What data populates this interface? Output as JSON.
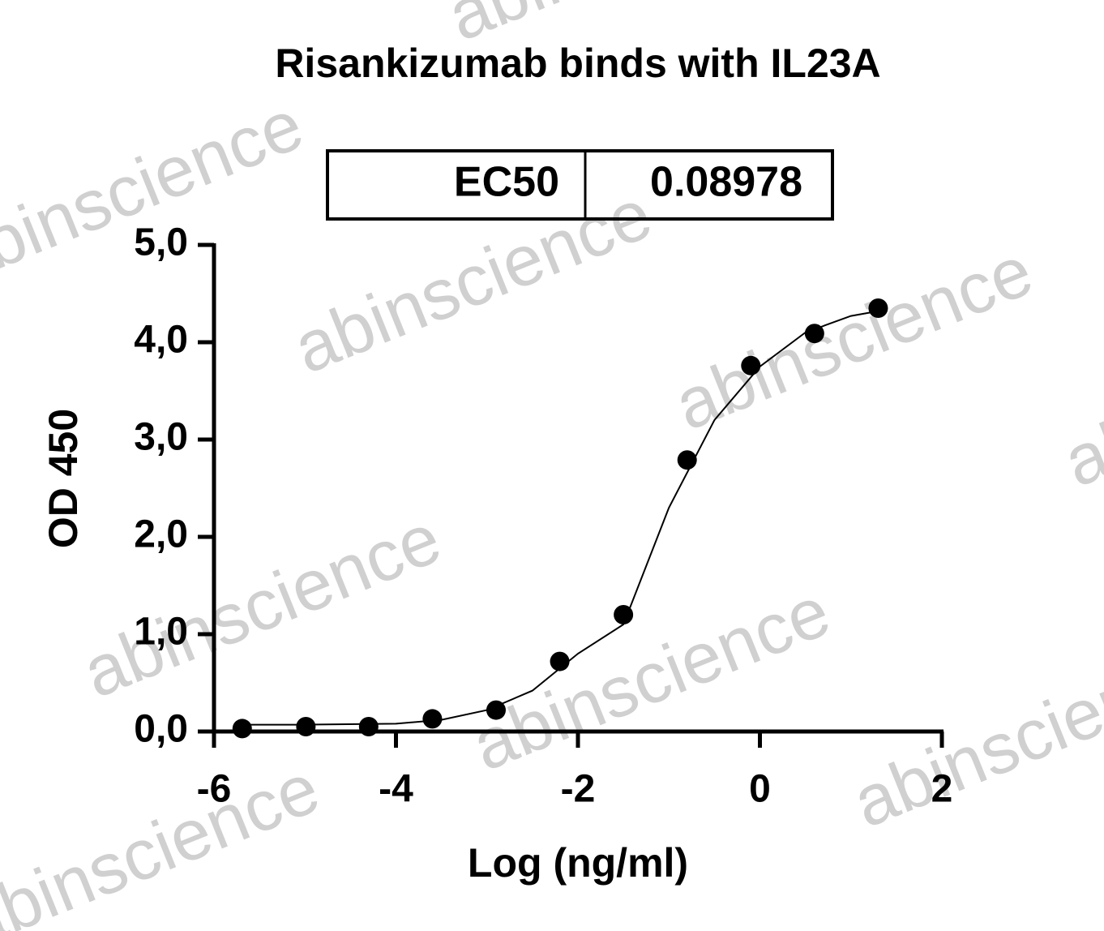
{
  "chart_data": {
    "type": "scatter",
    "title": "Risankizumab binds with IL23A",
    "table": {
      "header": "EC50",
      "value": "0.08978"
    },
    "watermark": "abinscience",
    "x_label": "Log (ng/ml)",
    "y_label": "OD 450",
    "x": [
      -5.69,
      -4.99,
      -4.3,
      -3.6,
      -2.9,
      -2.2,
      -1.5,
      -0.8,
      -0.1,
      0.6,
      1.3
    ],
    "series": [
      {
        "color": "#000000",
        "values": [
          0.03,
          0.05,
          0.05,
          0.13,
          0.22,
          0.72,
          1.2,
          2.79,
          3.76,
          4.09,
          4.35
        ]
      }
    ],
    "fit": {
      "color": "#000000",
      "x": [
        -5.7,
        -5,
        -4,
        -3.5,
        -3,
        -2.5,
        -2,
        -1.5,
        -1,
        -0.5,
        0,
        0.5,
        1,
        1.3
      ],
      "values": [
        0.07,
        0.07,
        0.08,
        0.12,
        0.22,
        0.42,
        0.8,
        1.1,
        2.3,
        3.2,
        3.75,
        4.1,
        4.27,
        4.32
      ]
    },
    "xlim": [
      -6,
      2
    ],
    "xticks": [
      -6,
      -4,
      -2,
      0,
      2
    ],
    "ylim": [
      0,
      5
    ],
    "yticks": [
      {
        "value": 0,
        "label": "0,0"
      },
      {
        "value": 1,
        "label": "1,0"
      },
      {
        "value": 2,
        "label": "2,0"
      },
      {
        "value": 3,
        "label": "3,0"
      },
      {
        "value": 4,
        "label": "4,0"
      },
      {
        "value": 5,
        "label": "5,0"
      }
    ],
    "grid": false
  }
}
